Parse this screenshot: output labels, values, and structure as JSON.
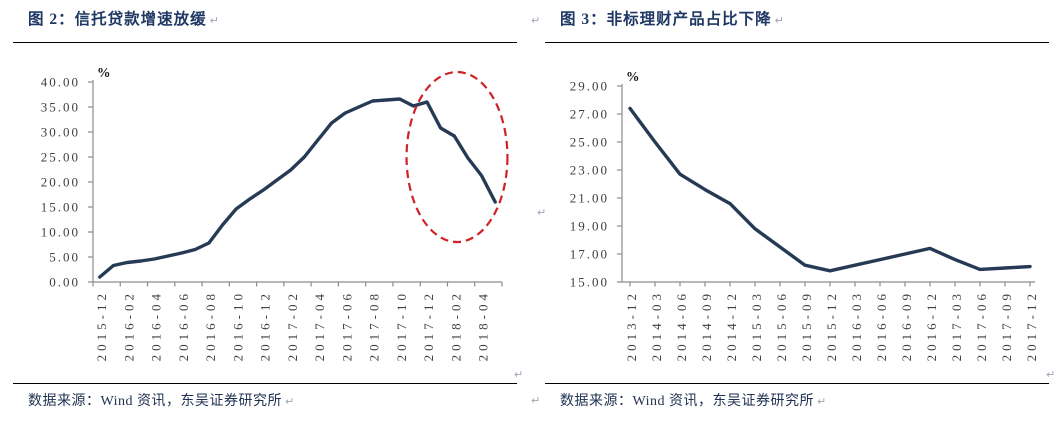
{
  "colors": {
    "background": "#ffffff",
    "title_text": "#1f3864",
    "source_text": "#1f3050",
    "line": "#263a55",
    "ellipse": "#cf2127",
    "axis": "#8c8c8c",
    "tick_label": "#3f3f3f",
    "percent_label": "#1a1a1a",
    "rule": "#000000",
    "paragraph_mark": "#9aa7b5"
  },
  "marks": {
    "return_mark": "↵"
  },
  "figures": [
    {
      "title": "图 2：信托贷款增速放缓",
      "source": "数据来源：Wind 资讯，东吴证券研究所"
    },
    {
      "title": "图 3：非标理财产品占比下降",
      "source": "数据来源：Wind 资讯，东吴证券研究所"
    }
  ],
  "chart_data": [
    {
      "type": "line",
      "title": "图 2：信托贷款增速放缓",
      "xlabel": "",
      "ylabel": "%",
      "unit_label": "%",
      "ylim": [
        0,
        40
      ],
      "ytick_step": 5,
      "ytick_labels": [
        "0.00",
        "5.00",
        "10.00",
        "15.00",
        "20.00",
        "25.00",
        "30.00",
        "35.00",
        "40.00"
      ],
      "x": [
        "2015-12",
        "2016-01",
        "2016-02",
        "2016-03",
        "2016-04",
        "2016-05",
        "2016-06",
        "2016-07",
        "2016-08",
        "2016-09",
        "2016-10",
        "2016-11",
        "2016-12",
        "2017-01",
        "2017-02",
        "2017-03",
        "2017-04",
        "2017-05",
        "2017-06",
        "2017-07",
        "2017-08",
        "2017-09",
        "2017-10",
        "2017-11",
        "2017-12",
        "2018-01",
        "2018-02",
        "2018-03",
        "2018-04",
        "2018-05"
      ],
      "xtick_labels": [
        "2015-12",
        "2016-02",
        "2016-04",
        "2016-06",
        "2016-08",
        "2016-10",
        "2016-12",
        "2017-02",
        "2017-04",
        "2017-06",
        "2017-08",
        "2017-10",
        "2017-12",
        "2018-02",
        "2018-04"
      ],
      "values": [
        1.0,
        3.3,
        3.9,
        4.2,
        4.6,
        5.2,
        5.8,
        6.5,
        7.8,
        11.4,
        14.6,
        16.6,
        18.4,
        20.4,
        22.4,
        25.0,
        28.4,
        31.8,
        33.8,
        35.0,
        36.2,
        36.4,
        36.6,
        35.2,
        36.0,
        30.8,
        29.2,
        24.8,
        21.3,
        16.0
      ],
      "grid": false,
      "legend": "none",
      "annotation": {
        "type": "dashed-ellipse",
        "color": "#cf2127",
        "center_x_index": 26.2,
        "center_y_value": 25,
        "radius_x_index": 3.7,
        "radius_y_value": 17,
        "note": "highlights the 2018 decline in trust-loan growth"
      }
    },
    {
      "type": "line",
      "title": "图 3：非标理财产品占比下降",
      "xlabel": "",
      "ylabel": "%",
      "unit_label": "%",
      "ylim": [
        15,
        29
      ],
      "ytick_step": 2,
      "ytick_labels": [
        "15.00",
        "17.00",
        "19.00",
        "21.00",
        "23.00",
        "25.00",
        "27.00",
        "29.00"
      ],
      "x": [
        "2013-12",
        "2014-03",
        "2014-06",
        "2014-09",
        "2014-12",
        "2015-03",
        "2015-06",
        "2015-09",
        "2015-12",
        "2016-03",
        "2016-06",
        "2016-09",
        "2016-12",
        "2017-03",
        "2017-06",
        "2017-09",
        "2017-12"
      ],
      "xtick_labels": [
        "2013-12",
        "2014-03",
        "2014-06",
        "2014-09",
        "2014-12",
        "2015-03",
        "2015-06",
        "2015-09",
        "2015-12",
        "2016-03",
        "2016-06",
        "2016-09",
        "2016-12",
        "2017-03",
        "2017-06",
        "2017-09",
        "2017-12"
      ],
      "values": [
        27.4,
        25.0,
        22.7,
        21.6,
        20.6,
        18.8,
        17.5,
        16.2,
        15.8,
        16.2,
        16.6,
        17.0,
        17.4,
        16.6,
        15.9,
        16.0,
        16.1
      ],
      "grid": false,
      "legend": "none"
    }
  ]
}
